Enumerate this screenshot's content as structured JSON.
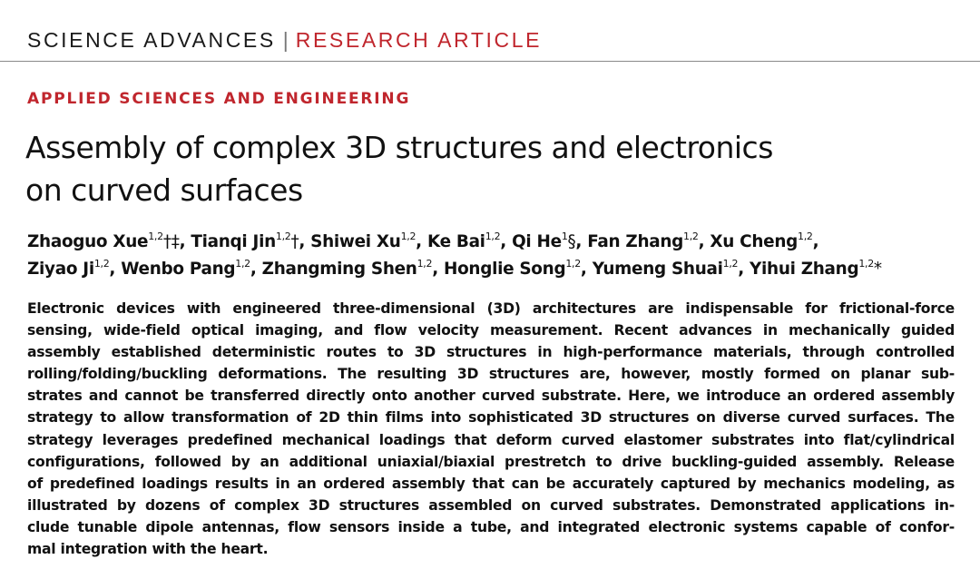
{
  "header": {
    "journal": "SCIENCE ADVANCES",
    "separator": "|",
    "article_type": "RESEARCH ARTICLE"
  },
  "section": "APPLIED SCIENCES AND ENGINEERING",
  "title": {
    "line1": "Assembly of complex 3D structures and electronics",
    "line2": "on curved surfaces"
  },
  "authors": [
    {
      "name": "Zhaoguo Xue",
      "aff": "1,2",
      "marks": "†‡",
      "sep": ", "
    },
    {
      "name": "Tianqi Jin",
      "aff": "1,2",
      "marks": "†",
      "sep": ", "
    },
    {
      "name": "Shiwei Xu",
      "aff": "1,2",
      "marks": "",
      "sep": ", "
    },
    {
      "name": "Ke Bai",
      "aff": "1,2",
      "marks": "",
      "sep": ", "
    },
    {
      "name": "Qi He",
      "aff": "1",
      "marks": "§",
      "sep": ", "
    },
    {
      "name": "Fan Zhang",
      "aff": "1,2",
      "marks": "",
      "sep": ", "
    },
    {
      "name": "Xu Cheng",
      "aff": "1,2",
      "marks": "",
      "sep": ","
    },
    {
      "name": "Ziyao Ji",
      "aff": "1,2",
      "marks": "",
      "sep": ", "
    },
    {
      "name": "Wenbo Pang",
      "aff": "1,2",
      "marks": "",
      "sep": ", "
    },
    {
      "name": "Zhangming Shen",
      "aff": "1,2",
      "marks": "",
      "sep": ", "
    },
    {
      "name": "Honglie Song",
      "aff": "1,2",
      "marks": "",
      "sep": ", "
    },
    {
      "name": "Yumeng Shuai",
      "aff": "1,2",
      "marks": "",
      "sep": ", "
    },
    {
      "name": "Yihui Zhang",
      "aff": "1,2",
      "marks": "*",
      "sep": ""
    }
  ],
  "abstract_lines": [
    "Electronic devices with engineered three-dimensional (3D) architectures are indispensable for frictional-force",
    "sensing, wide-field optical imaging, and flow velocity measurement. Recent advances in mechanically guided",
    "assembly established deterministic routes to 3D structures in high-performance materials, through controlled",
    "rolling/folding/buckling deformations. The resulting 3D structures are, however, mostly formed on planar sub-",
    "strates and cannot be transferred directly onto another curved substrate. Here, we introduce an ordered assembly",
    "strategy to allow transformation of 2D thin films into sophisticated 3D structures on diverse curved surfaces. The",
    "strategy leverages predefined mechanical loadings that deform curved elastomer substrates into flat/cylindrical",
    "configurations, followed by an additional uniaxial/biaxial prestretch to drive buckling-guided assembly. Release",
    "of predefined loadings results in an ordered assembly that can be accurately captured by mechanics modeling, as",
    "illustrated by dozens of complex 3D structures assembled on curved substrates. Demonstrated applications in-",
    "clude tunable dipole antennas, flow sensors inside a tube, and integrated electronic systems capable of confor-",
    "mal integration with the heart."
  ],
  "colors": {
    "accent_red": "#c0262d",
    "text": "#111111",
    "rule": "#8a8a8a"
  }
}
